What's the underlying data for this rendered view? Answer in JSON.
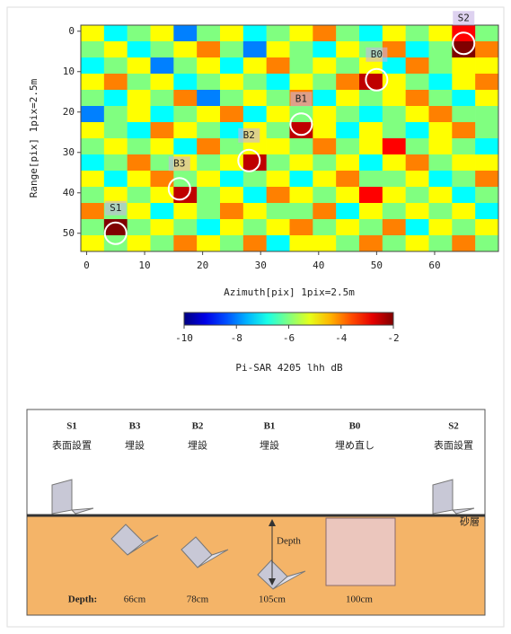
{
  "chart_data": {
    "type": "heatmap",
    "xlabel": "Azimuth[pix] 1pix=2.5m",
    "ylabel": "Range[pix] 1pix=2.5m",
    "xlim": [
      -1,
      71
    ],
    "ylim": [
      -1.5,
      54.5
    ],
    "xticks": [
      0,
      10,
      20,
      30,
      40,
      50,
      60
    ],
    "yticks": [
      0,
      10,
      20,
      30,
      40,
      50
    ],
    "xbins": [
      -1,
      3,
      7,
      11,
      15,
      19,
      23,
      27,
      31,
      35,
      39,
      43,
      47,
      51,
      55,
      59,
      63,
      67,
      71
    ],
    "ybins": [
      -1.5,
      2.5,
      6.5,
      10.5,
      14.5,
      18.5,
      22.5,
      26.5,
      30.5,
      34.5,
      38.5,
      42.5,
      46.5,
      50.5,
      54.5
    ],
    "z": [
      [
        -5,
        -7,
        -6,
        -5,
        -8,
        -6,
        -5,
        -7,
        -6,
        -5,
        -4,
        -6,
        -7,
        -5,
        -6,
        -5,
        -3,
        -6
      ],
      [
        -6,
        -5,
        -7,
        -6,
        -5,
        -4,
        -6,
        -8,
        -5,
        -6,
        -7,
        -5,
        -6,
        -4,
        -7,
        -6,
        -2,
        -4
      ],
      [
        -7,
        -6,
        -5,
        -8,
        -6,
        -5,
        -7,
        -5,
        -4,
        -6,
        -5,
        -6,
        -5,
        -7,
        -4,
        -6,
        -5,
        -5
      ],
      [
        -5,
        -4,
        -6,
        -5,
        -7,
        -6,
        -5,
        -6,
        -7,
        -5,
        -6,
        -4,
        -2.5,
        -5,
        -6,
        -7,
        -5,
        -4
      ],
      [
        -6,
        -7,
        -5,
        -6,
        -4,
        -8,
        -6,
        -5,
        -6,
        -4,
        -7,
        -5,
        -6,
        -5,
        -4,
        -6,
        -7,
        -5
      ],
      [
        -8,
        -6,
        -5,
        -7,
        -6,
        -5,
        -4,
        -7,
        -5,
        -6,
        -5,
        -6,
        -7,
        -6,
        -5,
        -4,
        -6,
        -6
      ],
      [
        -5,
        -6,
        -7,
        -4,
        -5,
        -6,
        -7,
        -5,
        -6,
        -2.5,
        -5,
        -7,
        -5,
        -6,
        -7,
        -5,
        -4,
        -6
      ],
      [
        -6,
        -5,
        -6,
        -5,
        -7,
        -4,
        -6,
        -5,
        -5,
        -6,
        -4,
        -6,
        -5,
        -3,
        -6,
        -5,
        -6,
        -7
      ],
      [
        -7,
        -6,
        -4,
        -6,
        -5,
        -6,
        -5,
        -2.5,
        -6,
        -5,
        -6,
        -5,
        -7,
        -5,
        -4,
        -6,
        -5,
        -5
      ],
      [
        -5,
        -7,
        -5,
        -4,
        -6,
        -5,
        -7,
        -6,
        -5,
        -7,
        -5,
        -4,
        -6,
        -6,
        -5,
        -7,
        -6,
        -4
      ],
      [
        -6,
        -5,
        -6,
        -5,
        -2.5,
        -6,
        -5,
        -7,
        -4,
        -5,
        -6,
        -5,
        -3,
        -5,
        -6,
        -5,
        -7,
        -6
      ],
      [
        -4,
        -6,
        -5,
        -7,
        -5,
        -6,
        -4,
        -5,
        -6,
        -6,
        -4,
        -7,
        -5,
        -6,
        -5,
        -6,
        -5,
        -7
      ],
      [
        -6,
        -2,
        -6,
        -5,
        -6,
        -7,
        -5,
        -6,
        -5,
        -4,
        -6,
        -5,
        -6,
        -4,
        -7,
        -5,
        -6,
        -5
      ],
      [
        -5,
        -6,
        -5,
        -6,
        -4,
        -5,
        -6,
        -4,
        -7,
        -5,
        -5,
        -6,
        -4,
        -6,
        -5,
        -6,
        -4,
        -6
      ]
    ],
    "annotations": [
      {
        "text": "S1",
        "x": 5,
        "y": 50
      },
      {
        "text": "B3",
        "x": 16,
        "y": 39
      },
      {
        "text": "B2",
        "x": 28,
        "y": 32
      },
      {
        "text": "B1",
        "x": 37,
        "y": 23
      },
      {
        "text": "B0",
        "x": 50,
        "y": 12
      },
      {
        "text": "S2",
        "x": 65,
        "y": 3
      }
    ],
    "colorbar": {
      "label": "Pi-SAR 4205 lhh dB",
      "lim": [
        -10,
        -2
      ],
      "ticks": [
        -10,
        -8,
        -6,
        -4,
        -2
      ]
    }
  },
  "diagram": {
    "targets": [
      {
        "id": "S1",
        "label": "表面設置"
      },
      {
        "id": "B3",
        "label": "埋設"
      },
      {
        "id": "B2",
        "label": "埋設"
      },
      {
        "id": "B1",
        "label": "埋設"
      },
      {
        "id": "B0",
        "label": "埋め直し"
      },
      {
        "id": "S2",
        "label": "表面設置"
      }
    ],
    "layer": "砂層",
    "depth_arrow": "Depth",
    "depth_row": {
      "label": "Depth:",
      "values": [
        "66cm",
        "78cm",
        "105cm",
        "100cm"
      ]
    }
  }
}
